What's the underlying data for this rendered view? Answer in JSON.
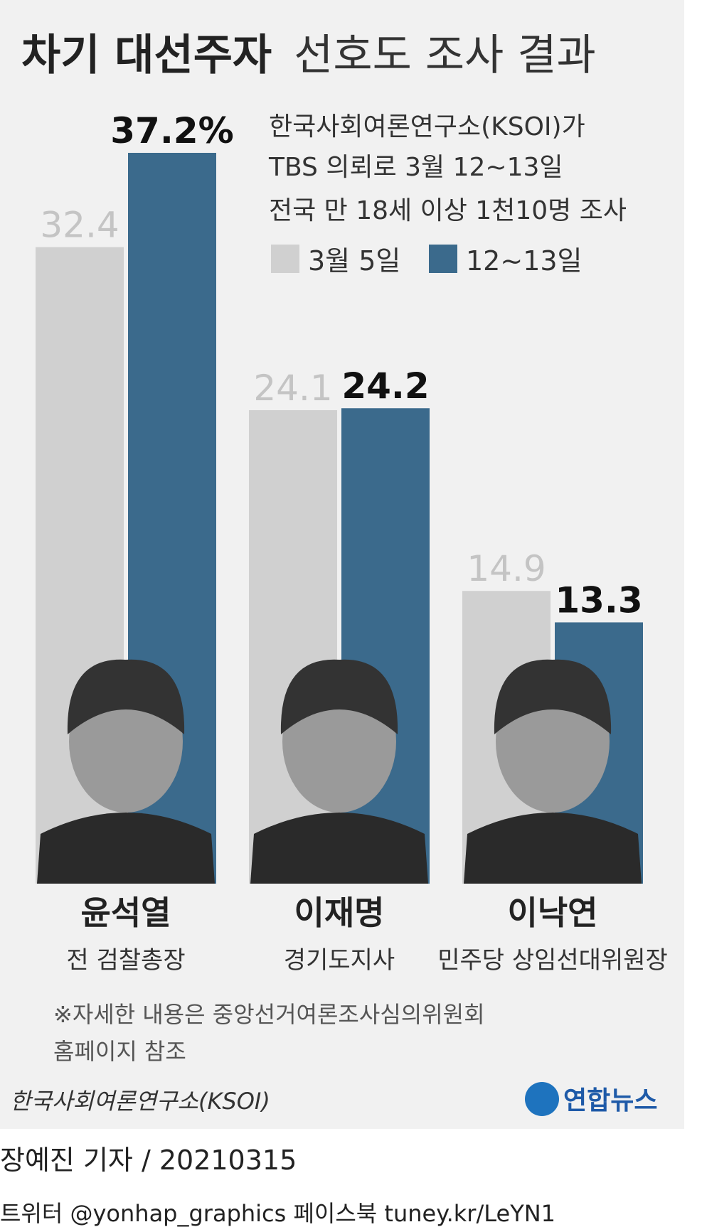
{
  "chart_data": {
    "type": "bar",
    "title_parts": [
      "차기 대선주자",
      "선호도 조사 결과"
    ],
    "description": [
      "한국사회여론연구소(KSOI)가",
      "TBS 의뢰로 3월 12~13일",
      "전국 만 18세 이상 1천10명 조사"
    ],
    "categories": [
      "윤석열",
      "이재명",
      "이낙연"
    ],
    "category_subtitles": [
      "전 검찰총장",
      "경기도지사",
      "민주당 상임선대위원장"
    ],
    "series": [
      {
        "name": "3월 5일",
        "color": "#d0d0d0",
        "values": [
          32.4,
          24.1,
          14.9
        ]
      },
      {
        "name": "12~13일",
        "color": "#3b6a8c",
        "values": [
          37.2,
          24.2,
          13.3
        ],
        "value_labels": [
          "37.2%",
          "24.2",
          "13.3"
        ]
      }
    ],
    "footnote": [
      "※자세한 내용은 중앙선거여론조사심의위원회",
      "홈페이지 참조"
    ],
    "source": "한국사회여론연구소(KSOI)",
    "logo": "연합뉴스",
    "credit": "장예진 기자 / 20210315",
    "social": "트위터 @yonhap_graphics  페이스북 tuney.kr/LeYN1"
  }
}
